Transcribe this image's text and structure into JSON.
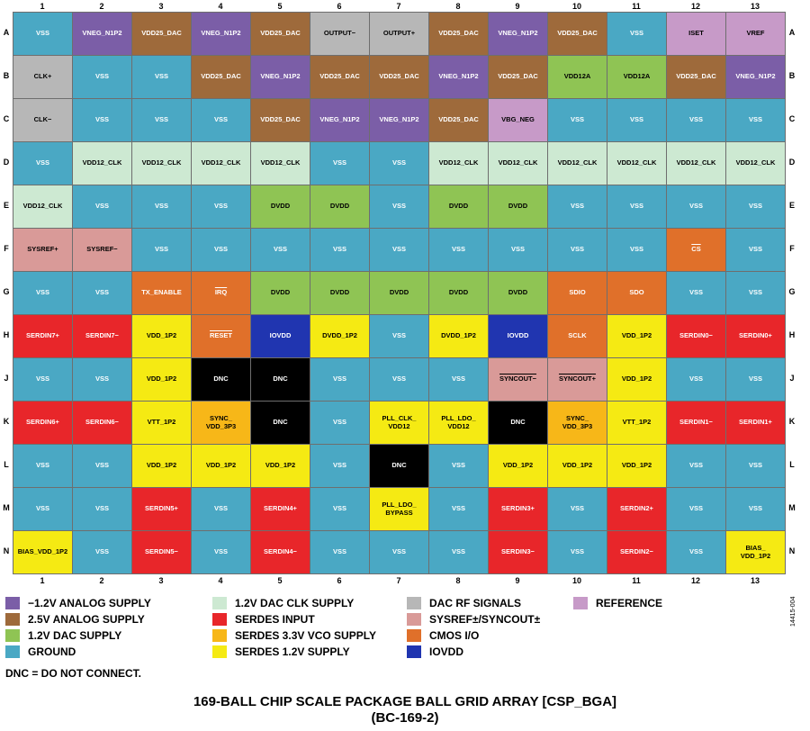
{
  "columns": [
    "1",
    "2",
    "3",
    "4",
    "5",
    "6",
    "7",
    "8",
    "9",
    "10",
    "11",
    "12",
    "13"
  ],
  "rows": [
    "A",
    "B",
    "C",
    "D",
    "E",
    "F",
    "G",
    "H",
    "J",
    "K",
    "L",
    "M",
    "N"
  ],
  "colors": {
    "neg": "#7b5ea7",
    "v25": "#9e6a3b",
    "v12dac": "#8fc454",
    "gnd": "#4aa8c4",
    "clk": "#cde9d2",
    "serdesin": "#e8262a",
    "vco": "#f7b718",
    "s12": "#f5ea13",
    "rf": "#b7b7b7",
    "sysref": "#d99a98",
    "cmos": "#e0702a",
    "iovdd": "#2035b0",
    "ref": "#c79ac8",
    "dnc": "#000000"
  },
  "text_colors": {
    "neg": "#ffffff",
    "v25": "#ffffff",
    "v12dac": "#000000",
    "gnd": "#ffffff",
    "clk": "#000000",
    "serdesin": "#ffffff",
    "vco": "#000000",
    "s12": "#000000",
    "rf": "#000000",
    "sysref": "#000000",
    "cmos": "#ffffff",
    "iovdd": "#ffffff",
    "ref": "#000000",
    "dnc": "#ffffff"
  },
  "grid": [
    [
      [
        "VSS",
        "gnd"
      ],
      [
        "VNEG_N1P2",
        "neg"
      ],
      [
        "VDD25_DAC",
        "v25"
      ],
      [
        "VNEG_N1P2",
        "neg"
      ],
      [
        "VDD25_DAC",
        "v25"
      ],
      [
        "OUTPUT−",
        "rf"
      ],
      [
        "OUTPUT+",
        "rf"
      ],
      [
        "VDD25_DAC",
        "v25"
      ],
      [
        "VNEG_N1P2",
        "neg"
      ],
      [
        "VDD25_DAC",
        "v25"
      ],
      [
        "VSS",
        "gnd"
      ],
      [
        "ISET",
        "ref"
      ],
      [
        "VREF",
        "ref"
      ]
    ],
    [
      [
        "CLK+",
        "rf"
      ],
      [
        "VSS",
        "gnd"
      ],
      [
        "VSS",
        "gnd"
      ],
      [
        "VDD25_DAC",
        "v25"
      ],
      [
        "VNEG_N1P2",
        "neg"
      ],
      [
        "VDD25_DAC",
        "v25"
      ],
      [
        "VDD25_DAC",
        "v25"
      ],
      [
        "VNEG_N1P2",
        "neg"
      ],
      [
        "VDD25_DAC",
        "v25"
      ],
      [
        "VDD12A",
        "v12dac"
      ],
      [
        "VDD12A",
        "v12dac"
      ],
      [
        "VDD25_DAC",
        "v25"
      ],
      [
        "VNEG_N1P2",
        "neg"
      ]
    ],
    [
      [
        "CLK−",
        "rf"
      ],
      [
        "VSS",
        "gnd"
      ],
      [
        "VSS",
        "gnd"
      ],
      [
        "VSS",
        "gnd"
      ],
      [
        "VDD25_DAC",
        "v25"
      ],
      [
        "VNEG_N1P2",
        "neg"
      ],
      [
        "VNEG_N1P2",
        "neg"
      ],
      [
        "VDD25_DAC",
        "v25"
      ],
      [
        "VBG_NEG",
        "ref"
      ],
      [
        "VSS",
        "gnd"
      ],
      [
        "VSS",
        "gnd"
      ],
      [
        "VSS",
        "gnd"
      ],
      [
        "VSS",
        "gnd"
      ]
    ],
    [
      [
        "VSS",
        "gnd"
      ],
      [
        "VDD12_CLK",
        "clk"
      ],
      [
        "VDD12_CLK",
        "clk"
      ],
      [
        "VDD12_CLK",
        "clk"
      ],
      [
        "VDD12_CLK",
        "clk"
      ],
      [
        "VSS",
        "gnd"
      ],
      [
        "VSS",
        "gnd"
      ],
      [
        "VDD12_CLK",
        "clk"
      ],
      [
        "VDD12_CLK",
        "clk"
      ],
      [
        "VDD12_CLK",
        "clk"
      ],
      [
        "VDD12_CLK",
        "clk"
      ],
      [
        "VDD12_CLK",
        "clk"
      ],
      [
        "VDD12_CLK",
        "clk"
      ]
    ],
    [
      [
        "VDD12_CLK",
        "clk"
      ],
      [
        "VSS",
        "gnd"
      ],
      [
        "VSS",
        "gnd"
      ],
      [
        "VSS",
        "gnd"
      ],
      [
        "DVDD",
        "v12dac"
      ],
      [
        "DVDD",
        "v12dac"
      ],
      [
        "VSS",
        "gnd"
      ],
      [
        "DVDD",
        "v12dac"
      ],
      [
        "DVDD",
        "v12dac"
      ],
      [
        "VSS",
        "gnd"
      ],
      [
        "VSS",
        "gnd"
      ],
      [
        "VSS",
        "gnd"
      ],
      [
        "VSS",
        "gnd"
      ]
    ],
    [
      [
        "SYSREF+",
        "sysref"
      ],
      [
        "SYSREF−",
        "sysref"
      ],
      [
        "VSS",
        "gnd"
      ],
      [
        "VSS",
        "gnd"
      ],
      [
        "VSS",
        "gnd"
      ],
      [
        "VSS",
        "gnd"
      ],
      [
        "VSS",
        "gnd"
      ],
      [
        "VSS",
        "gnd"
      ],
      [
        "VSS",
        "gnd"
      ],
      [
        "VSS",
        "gnd"
      ],
      [
        "VSS",
        "gnd"
      ],
      [
        "CS",
        "cmos",
        1
      ],
      [
        "VSS",
        "gnd"
      ]
    ],
    [
      [
        "VSS",
        "gnd"
      ],
      [
        "VSS",
        "gnd"
      ],
      [
        "TX_ENABLE",
        "cmos"
      ],
      [
        "IRQ",
        "cmos",
        1
      ],
      [
        "DVDD",
        "v12dac"
      ],
      [
        "DVDD",
        "v12dac"
      ],
      [
        "DVDD",
        "v12dac"
      ],
      [
        "DVDD",
        "v12dac"
      ],
      [
        "DVDD",
        "v12dac"
      ],
      [
        "SDIO",
        "cmos"
      ],
      [
        "SDO",
        "cmos"
      ],
      [
        "VSS",
        "gnd"
      ],
      [
        "VSS",
        "gnd"
      ]
    ],
    [
      [
        "SERDIN7+",
        "serdesin"
      ],
      [
        "SERDIN7−",
        "serdesin"
      ],
      [
        "VDD_1P2",
        "s12"
      ],
      [
        "RESET",
        "cmos",
        1
      ],
      [
        "IOVDD",
        "iovdd"
      ],
      [
        "DVDD_1P2",
        "s12"
      ],
      [
        "VSS",
        "gnd"
      ],
      [
        "DVDD_1P2",
        "s12"
      ],
      [
        "IOVDD",
        "iovdd"
      ],
      [
        "SCLK",
        "cmos"
      ],
      [
        "VDD_1P2",
        "s12"
      ],
      [
        "SERDIN0−",
        "serdesin"
      ],
      [
        "SERDIN0+",
        "serdesin"
      ]
    ],
    [
      [
        "VSS",
        "gnd"
      ],
      [
        "VSS",
        "gnd"
      ],
      [
        "VDD_1P2",
        "s12"
      ],
      [
        "DNC",
        "dnc"
      ],
      [
        "DNC",
        "dnc"
      ],
      [
        "VSS",
        "gnd"
      ],
      [
        "VSS",
        "gnd"
      ],
      [
        "VSS",
        "gnd"
      ],
      [
        "SYNCOUT−",
        "sysref",
        1
      ],
      [
        "SYNCOUT+",
        "sysref",
        1
      ],
      [
        "VDD_1P2",
        "s12"
      ],
      [
        "VSS",
        "gnd"
      ],
      [
        "VSS",
        "gnd"
      ]
    ],
    [
      [
        "SERDIN6+",
        "serdesin"
      ],
      [
        "SERDIN6−",
        "serdesin"
      ],
      [
        "VTT_1P2",
        "s12"
      ],
      [
        "SYNC_\nVDD_3P3",
        "vco"
      ],
      [
        "DNC",
        "dnc"
      ],
      [
        "VSS",
        "gnd"
      ],
      [
        "PLL_CLK_\nVDD12",
        "s12"
      ],
      [
        "PLL_LDO_\nVDD12",
        "s12"
      ],
      [
        "DNC",
        "dnc"
      ],
      [
        "SYNC_\nVDD_3P3",
        "vco"
      ],
      [
        "VTT_1P2",
        "s12"
      ],
      [
        "SERDIN1−",
        "serdesin"
      ],
      [
        "SERDIN1+",
        "serdesin"
      ]
    ],
    [
      [
        "VSS",
        "gnd"
      ],
      [
        "VSS",
        "gnd"
      ],
      [
        "VDD_1P2",
        "s12"
      ],
      [
        "VDD_1P2",
        "s12"
      ],
      [
        "VDD_1P2",
        "s12"
      ],
      [
        "VSS",
        "gnd"
      ],
      [
        "DNC",
        "dnc"
      ],
      [
        "VSS",
        "gnd"
      ],
      [
        "VDD_1P2",
        "s12"
      ],
      [
        "VDD_1P2",
        "s12"
      ],
      [
        "VDD_1P2",
        "s12"
      ],
      [
        "VSS",
        "gnd"
      ],
      [
        "VSS",
        "gnd"
      ]
    ],
    [
      [
        "VSS",
        "gnd"
      ],
      [
        "VSS",
        "gnd"
      ],
      [
        "SERDIN5+",
        "serdesin"
      ],
      [
        "VSS",
        "gnd"
      ],
      [
        "SERDIN4+",
        "serdesin"
      ],
      [
        "VSS",
        "gnd"
      ],
      [
        "PLL_LDO_\nBYPASS",
        "s12"
      ],
      [
        "VSS",
        "gnd"
      ],
      [
        "SERDIN3+",
        "serdesin"
      ],
      [
        "VSS",
        "gnd"
      ],
      [
        "SERDIN2+",
        "serdesin"
      ],
      [
        "VSS",
        "gnd"
      ],
      [
        "VSS",
        "gnd"
      ]
    ],
    [
      [
        "BIAS_VDD_1P2",
        "s12"
      ],
      [
        "VSS",
        "gnd"
      ],
      [
        "SERDIN5−",
        "serdesin"
      ],
      [
        "VSS",
        "gnd"
      ],
      [
        "SERDIN4−",
        "serdesin"
      ],
      [
        "VSS",
        "gnd"
      ],
      [
        "VSS",
        "gnd"
      ],
      [
        "VSS",
        "gnd"
      ],
      [
        "SERDIN3−",
        "serdesin"
      ],
      [
        "VSS",
        "gnd"
      ],
      [
        "SERDIN2−",
        "serdesin"
      ],
      [
        "VSS",
        "gnd"
      ],
      [
        "BIAS_\nVDD_1P2",
        "s12"
      ]
    ]
  ],
  "legend": [
    {
      "label": "−1.2V ANALOG SUPPLY",
      "key": "neg"
    },
    {
      "label": "2.5V ANALOG SUPPLY",
      "key": "v25"
    },
    {
      "label": "1.2V DAC SUPPLY",
      "key": "v12dac"
    },
    {
      "label": "GROUND",
      "key": "gnd"
    },
    {
      "label": "1.2V DAC CLK SUPPLY",
      "key": "clk"
    },
    {
      "label": "SERDES INPUT",
      "key": "serdesin"
    },
    {
      "label": "SERDES 3.3V VCO SUPPLY",
      "key": "vco"
    },
    {
      "label": "SERDES 1.2V SUPPLY",
      "key": "s12"
    },
    {
      "label": "DAC RF SIGNALS",
      "key": "rf"
    },
    {
      "label": "SYSREF±/SYNCOUT±",
      "key": "sysref"
    },
    {
      "label": "CMOS I/O",
      "key": "cmos"
    },
    {
      "label": "IOVDD",
      "key": "iovdd"
    },
    {
      "label": "REFERENCE",
      "key": "ref"
    }
  ],
  "note": "DNC = DO NOT CONNECT.",
  "figure_id": "14415-004",
  "title_line1": "169-BALL CHIP SCALE PACKAGE BALL GRID ARRAY [CSP_BGA]",
  "title_line2": "(BC-169-2)"
}
